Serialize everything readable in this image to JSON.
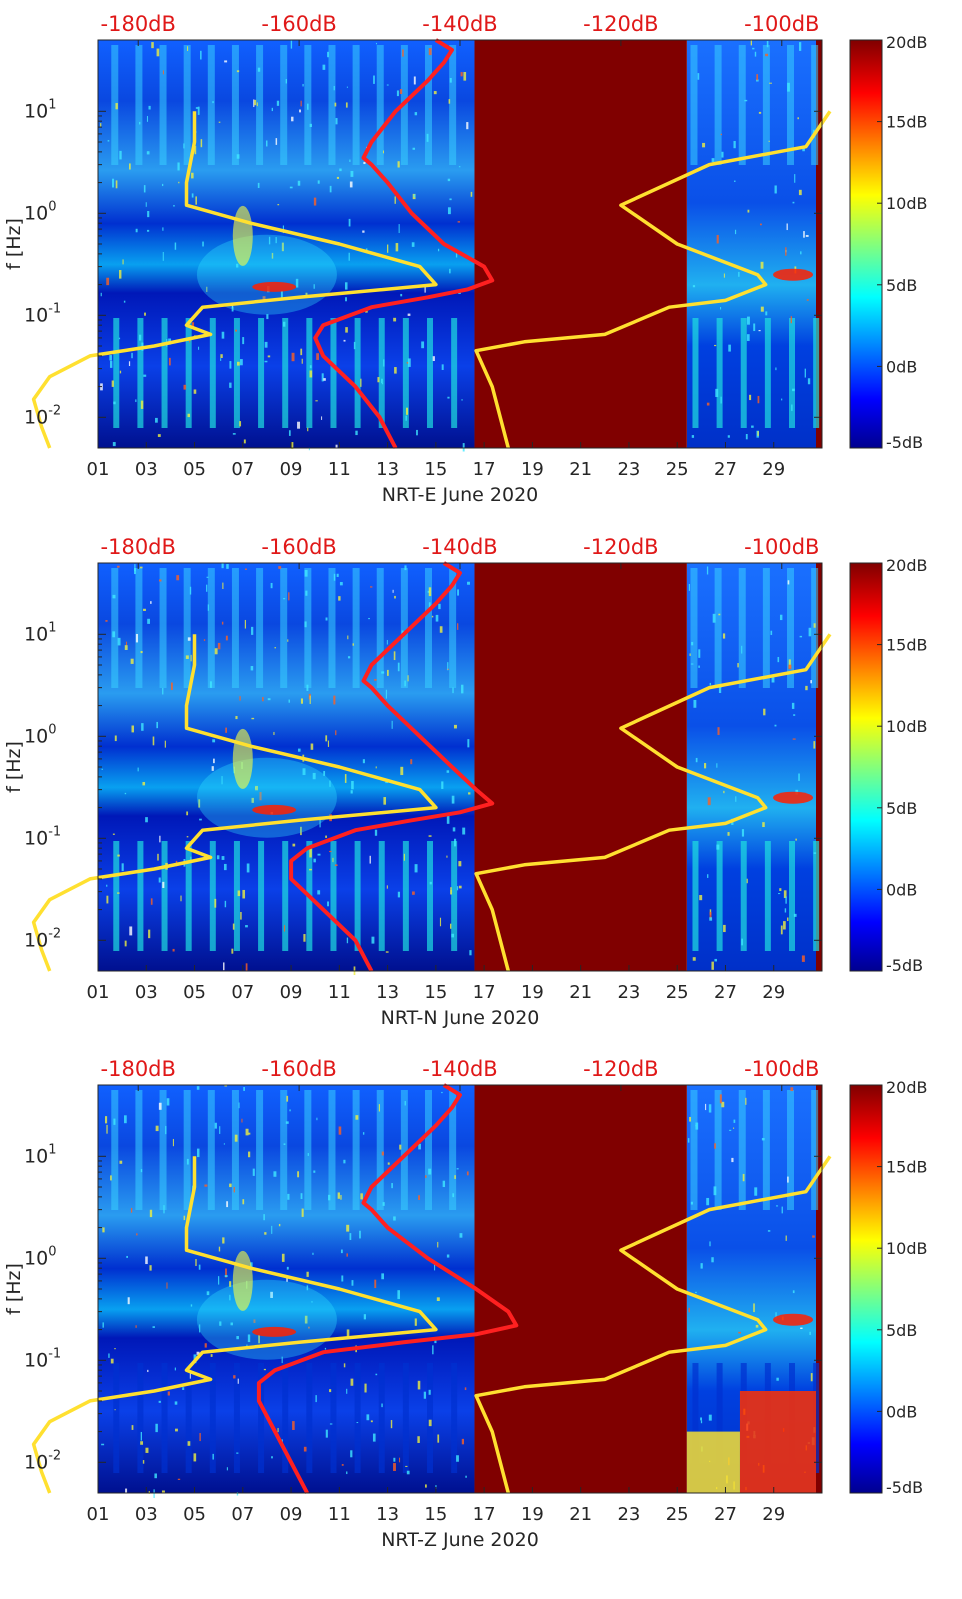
{
  "chart_data": [
    {
      "type": "heatmap",
      "title": "",
      "xlabel": "NRT-E June 2020",
      "ylabel": "f [Hz]",
      "x_ticks": [
        "01",
        "03",
        "05",
        "07",
        "09",
        "11",
        "13",
        "15",
        "17",
        "19",
        "21",
        "23",
        "25",
        "27",
        "29"
      ],
      "y_ticks": [
        "10-2",
        "10-1",
        "100",
        "101"
      ],
      "top_axis_ticks": [
        "-180dB",
        "-160dB",
        "-140dB",
        "-120dB",
        "-100dB"
      ],
      "colorbar_ticks": [
        "20dB",
        "15dB",
        "10dB",
        "5dB",
        "0dB",
        "-5dB"
      ],
      "x_range_days": [
        1,
        31
      ],
      "y_range_hz": [
        0.005,
        50
      ],
      "color_range_db": [
        -5,
        20
      ],
      "top_axis_range_db": [
        -185,
        -95
      ],
      "scale_y": "log",
      "data_gap_days": [
        16.6,
        25.4
      ],
      "series": [
        {
          "color": "#ff2020",
          "points": [
            [
              50,
              -143
            ],
            [
              40,
              -141
            ],
            [
              30,
              -142
            ],
            [
              20,
              -144
            ],
            [
              10,
              -148
            ],
            [
              5,
              -151
            ],
            [
              3.5,
              -152
            ],
            [
              3,
              -151
            ],
            [
              2,
              -149
            ],
            [
              1,
              -146
            ],
            [
              0.5,
              -142
            ],
            [
              0.3,
              -137
            ],
            [
              0.22,
              -136
            ],
            [
              0.18,
              -139
            ],
            [
              0.15,
              -144
            ],
            [
              0.12,
              -151
            ],
            [
              0.08,
              -157
            ],
            [
              0.06,
              -158
            ],
            [
              0.04,
              -157
            ],
            [
              0.02,
              -153
            ],
            [
              0.01,
              -150
            ],
            [
              0.005,
              -148
            ]
          ]
        },
        {
          "color": "#ffe030",
          "points": [
            [
              10,
              -173
            ],
            [
              5,
              -173
            ],
            [
              2,
              -174
            ],
            [
              1.2,
              -174
            ],
            [
              0.8,
              -166
            ],
            [
              0.5,
              -155
            ],
            [
              0.3,
              -145
            ],
            [
              0.2,
              -143
            ],
            [
              0.15,
              -160
            ],
            [
              0.12,
              -172
            ],
            [
              0.08,
              -174
            ],
            [
              0.065,
              -171
            ],
            [
              0.05,
              -178
            ],
            [
              0.04,
              -186
            ],
            [
              0.025,
              -191
            ],
            [
              0.015,
              -193
            ],
            [
              0.008,
              -192
            ],
            [
              0.005,
              -191
            ]
          ]
        },
        {
          "color": "#ffe030",
          "points": [
            [
              0.005,
              -134
            ],
            [
              0.02,
              -136
            ],
            [
              0.045,
              -138
            ],
            [
              0.055,
              -132
            ],
            [
              0.065,
              -122
            ],
            [
              0.12,
              -114
            ],
            [
              0.14,
              -107
            ],
            [
              0.2,
              -102
            ],
            [
              0.25,
              -103
            ],
            [
              0.5,
              -113
            ],
            [
              1.2,
              -120
            ],
            [
              3,
              -109
            ],
            [
              4.5,
              -97
            ],
            [
              10,
              -94
            ]
          ]
        }
      ]
    },
    {
      "type": "heatmap",
      "title": "",
      "xlabel": "NRT-N June 2020",
      "ylabel": "f [Hz]",
      "x_ticks": [
        "01",
        "03",
        "05",
        "07",
        "09",
        "11",
        "13",
        "15",
        "17",
        "19",
        "21",
        "23",
        "25",
        "27",
        "29"
      ],
      "y_ticks": [
        "10-2",
        "10-1",
        "100",
        "101"
      ],
      "top_axis_ticks": [
        "-180dB",
        "-160dB",
        "-140dB",
        "-120dB",
        "-100dB"
      ],
      "colorbar_ticks": [
        "20dB",
        "15dB",
        "10dB",
        "5dB",
        "0dB",
        "-5dB"
      ],
      "x_range_days": [
        1,
        31
      ],
      "y_range_hz": [
        0.005,
        50
      ],
      "color_range_db": [
        -5,
        20
      ],
      "top_axis_range_db": [
        -185,
        -95
      ],
      "scale_y": "log",
      "data_gap_days": [
        16.6,
        25.4
      ],
      "series": [
        {
          "color": "#ff2020",
          "points": [
            [
              50,
              -142
            ],
            [
              40,
              -140
            ],
            [
              30,
              -141
            ],
            [
              20,
              -143
            ],
            [
              10,
              -147
            ],
            [
              5,
              -151
            ],
            [
              3.5,
              -152
            ],
            [
              3,
              -151
            ],
            [
              2,
              -149
            ],
            [
              1,
              -145
            ],
            [
              0.5,
              -141
            ],
            [
              0.3,
              -138
            ],
            [
              0.22,
              -136
            ],
            [
              0.18,
              -140
            ],
            [
              0.15,
              -146
            ],
            [
              0.12,
              -153
            ],
            [
              0.08,
              -159
            ],
            [
              0.06,
              -161
            ],
            [
              0.04,
              -161
            ],
            [
              0.02,
              -157
            ],
            [
              0.01,
              -153
            ],
            [
              0.005,
              -151
            ]
          ]
        },
        {
          "color": "#ffe030",
          "points": [
            [
              10,
              -173
            ],
            [
              5,
              -173
            ],
            [
              2,
              -174
            ],
            [
              1.2,
              -174
            ],
            [
              0.8,
              -166
            ],
            [
              0.5,
              -155
            ],
            [
              0.3,
              -145
            ],
            [
              0.2,
              -143
            ],
            [
              0.15,
              -160
            ],
            [
              0.12,
              -172
            ],
            [
              0.08,
              -174
            ],
            [
              0.065,
              -171
            ],
            [
              0.05,
              -178
            ],
            [
              0.04,
              -186
            ],
            [
              0.025,
              -191
            ],
            [
              0.015,
              -193
            ],
            [
              0.008,
              -192
            ],
            [
              0.005,
              -191
            ]
          ]
        },
        {
          "color": "#ffe030",
          "points": [
            [
              0.005,
              -134
            ],
            [
              0.02,
              -136
            ],
            [
              0.045,
              -138
            ],
            [
              0.055,
              -132
            ],
            [
              0.065,
              -122
            ],
            [
              0.12,
              -114
            ],
            [
              0.14,
              -107
            ],
            [
              0.2,
              -102
            ],
            [
              0.25,
              -103
            ],
            [
              0.5,
              -113
            ],
            [
              1.2,
              -120
            ],
            [
              3,
              -109
            ],
            [
              4.5,
              -97
            ],
            [
              10,
              -94
            ]
          ]
        }
      ]
    },
    {
      "type": "heatmap",
      "title": "",
      "xlabel": "NRT-Z June 2020",
      "ylabel": "f [Hz]",
      "x_ticks": [
        "01",
        "03",
        "05",
        "07",
        "09",
        "11",
        "13",
        "15",
        "17",
        "19",
        "21",
        "23",
        "25",
        "27",
        "29"
      ],
      "y_ticks": [
        "10-2",
        "10-1",
        "100",
        "101"
      ],
      "top_axis_ticks": [
        "-180dB",
        "-160dB",
        "-140dB",
        "-120dB",
        "-100dB"
      ],
      "colorbar_ticks": [
        "20dB",
        "15dB",
        "10dB",
        "5dB",
        "0dB",
        "-5dB"
      ],
      "x_range_days": [
        1,
        31
      ],
      "y_range_hz": [
        0.005,
        50
      ],
      "color_range_db": [
        -5,
        20
      ],
      "top_axis_range_db": [
        -185,
        -95
      ],
      "scale_y": "log",
      "data_gap_days": [
        16.6,
        25.4
      ],
      "series": [
        {
          "color": "#ff2020",
          "points": [
            [
              50,
              -142
            ],
            [
              40,
              -140
            ],
            [
              30,
              -141
            ],
            [
              20,
              -143
            ],
            [
              10,
              -147
            ],
            [
              5,
              -151
            ],
            [
              3.5,
              -152
            ],
            [
              3,
              -151
            ],
            [
              2,
              -149
            ],
            [
              1,
              -144
            ],
            [
              0.5,
              -138
            ],
            [
              0.3,
              -134
            ],
            [
              0.22,
              -133
            ],
            [
              0.18,
              -138
            ],
            [
              0.15,
              -147
            ],
            [
              0.12,
              -157
            ],
            [
              0.08,
              -163
            ],
            [
              0.06,
              -165
            ],
            [
              0.04,
              -165
            ],
            [
              0.02,
              -163
            ],
            [
              0.01,
              -161
            ],
            [
              0.005,
              -159
            ]
          ]
        },
        {
          "color": "#ffe030",
          "points": [
            [
              10,
              -173
            ],
            [
              5,
              -173
            ],
            [
              2,
              -174
            ],
            [
              1.2,
              -174
            ],
            [
              0.8,
              -166
            ],
            [
              0.5,
              -155
            ],
            [
              0.3,
              -145
            ],
            [
              0.2,
              -143
            ],
            [
              0.15,
              -160
            ],
            [
              0.12,
              -172
            ],
            [
              0.08,
              -174
            ],
            [
              0.065,
              -171
            ],
            [
              0.05,
              -178
            ],
            [
              0.04,
              -186
            ],
            [
              0.025,
              -191
            ],
            [
              0.015,
              -193
            ],
            [
              0.008,
              -192
            ],
            [
              0.005,
              -191
            ]
          ]
        },
        {
          "color": "#ffe030",
          "points": [
            [
              0.005,
              -134
            ],
            [
              0.02,
              -136
            ],
            [
              0.045,
              -138
            ],
            [
              0.055,
              -132
            ],
            [
              0.065,
              -122
            ],
            [
              0.12,
              -114
            ],
            [
              0.14,
              -107
            ],
            [
              0.2,
              -102
            ],
            [
              0.25,
              -103
            ],
            [
              0.5,
              -113
            ],
            [
              1.2,
              -120
            ],
            [
              3,
              -109
            ],
            [
              4.5,
              -97
            ],
            [
              10,
              -94
            ]
          ]
        }
      ]
    }
  ],
  "colors": {
    "colormap": [
      "#00008f",
      "#0000ff",
      "#00ffff",
      "#ffff00",
      "#ff0000",
      "#800000"
    ],
    "top_axis_label": "#e01818",
    "gap_fill": "#800000"
  }
}
